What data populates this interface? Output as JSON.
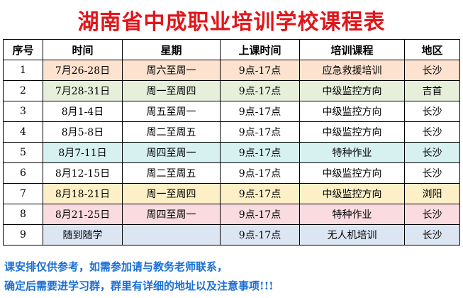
{
  "title": "湖南省中成职业培训学校课程表",
  "headers": [
    "序号",
    "时间",
    "星期",
    "上课时间",
    "培训课程",
    "地区"
  ],
  "colors": {
    "title": "#e0161b",
    "note": "#1a6fd6",
    "orange": "#fde3cf",
    "green": "#e5efda",
    "cyan": "#d7f1f1",
    "yellow": "#fdf0c7",
    "pink": "#fadbe0",
    "blue": "#dce6f3"
  },
  "rows": [
    {
      "no": "1",
      "date": "7月26-28日",
      "weekday": "周六至周一",
      "hours": "9点-17点",
      "course": "应急救援培训",
      "region": "长沙",
      "color": "orange"
    },
    {
      "no": "2",
      "date": "7月28-31日",
      "weekday": "周一至周四",
      "hours": "9点-17点",
      "course": "中级监控方向",
      "region": "吉首",
      "color": "green"
    },
    {
      "no": "3",
      "date": "8月1-4日",
      "weekday": "周五至周一",
      "hours": "9点-17点",
      "course": "中级监控方向",
      "region": "长沙",
      "color": "white"
    },
    {
      "no": "4",
      "date": "8月5-8日",
      "weekday": "周二至周五",
      "hours": "9点-17点",
      "course": "中级监控方向",
      "region": "长沙",
      "color": "white"
    },
    {
      "no": "5",
      "date": "8月7-11日",
      "weekday": "周四至周一",
      "hours": "9点-17点",
      "course": "特种作业",
      "region": "长沙",
      "color": "cyan"
    },
    {
      "no": "6",
      "date": "8月12-15日",
      "weekday": "周二至周五",
      "hours": "9点-17点",
      "course": "中级监控方向",
      "region": "长沙",
      "color": "white"
    },
    {
      "no": "7",
      "date": "8月18-21日",
      "weekday": "周一至周四",
      "hours": "9点-17点",
      "course": "中级监控方向",
      "region": "浏阳",
      "color": "yellow"
    },
    {
      "no": "8",
      "date": "8月21-25日",
      "weekday": "周四至周一",
      "hours": "9点-17点",
      "course": "特种作业",
      "region": "长沙",
      "color": "pink"
    },
    {
      "no": "9",
      "date": "随到随学",
      "weekday": "",
      "hours": "9点-17点",
      "course": "无人机培训",
      "region": "长沙",
      "color": "blue"
    }
  ],
  "notes": {
    "line1": "课安排仅供参考，如需参加请与教务老师联系，",
    "line2": "确定后需要进学习群，群里有详细的地址以及注意事项!!!"
  }
}
